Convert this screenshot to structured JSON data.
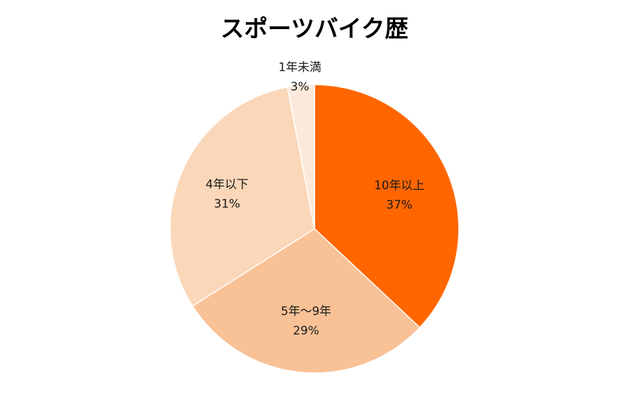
{
  "chart_data": {
    "type": "pie",
    "title": "スポーツバイク歴",
    "start_angle_deg": 0,
    "direction": "clockwise",
    "slices": [
      {
        "label": "10年以上",
        "value": 37,
        "value_label": "37%",
        "color": "#FF6600"
      },
      {
        "label": "5年～9年",
        "value": 29,
        "value_label": "29%",
        "color": "#F9C196"
      },
      {
        "label": "4年以下",
        "value": 31,
        "value_label": "31%",
        "color": "#FBD7B9"
      },
      {
        "label": "1年未満",
        "value": 3,
        "value_label": "3%",
        "color": "#FDE9DB"
      }
    ]
  }
}
